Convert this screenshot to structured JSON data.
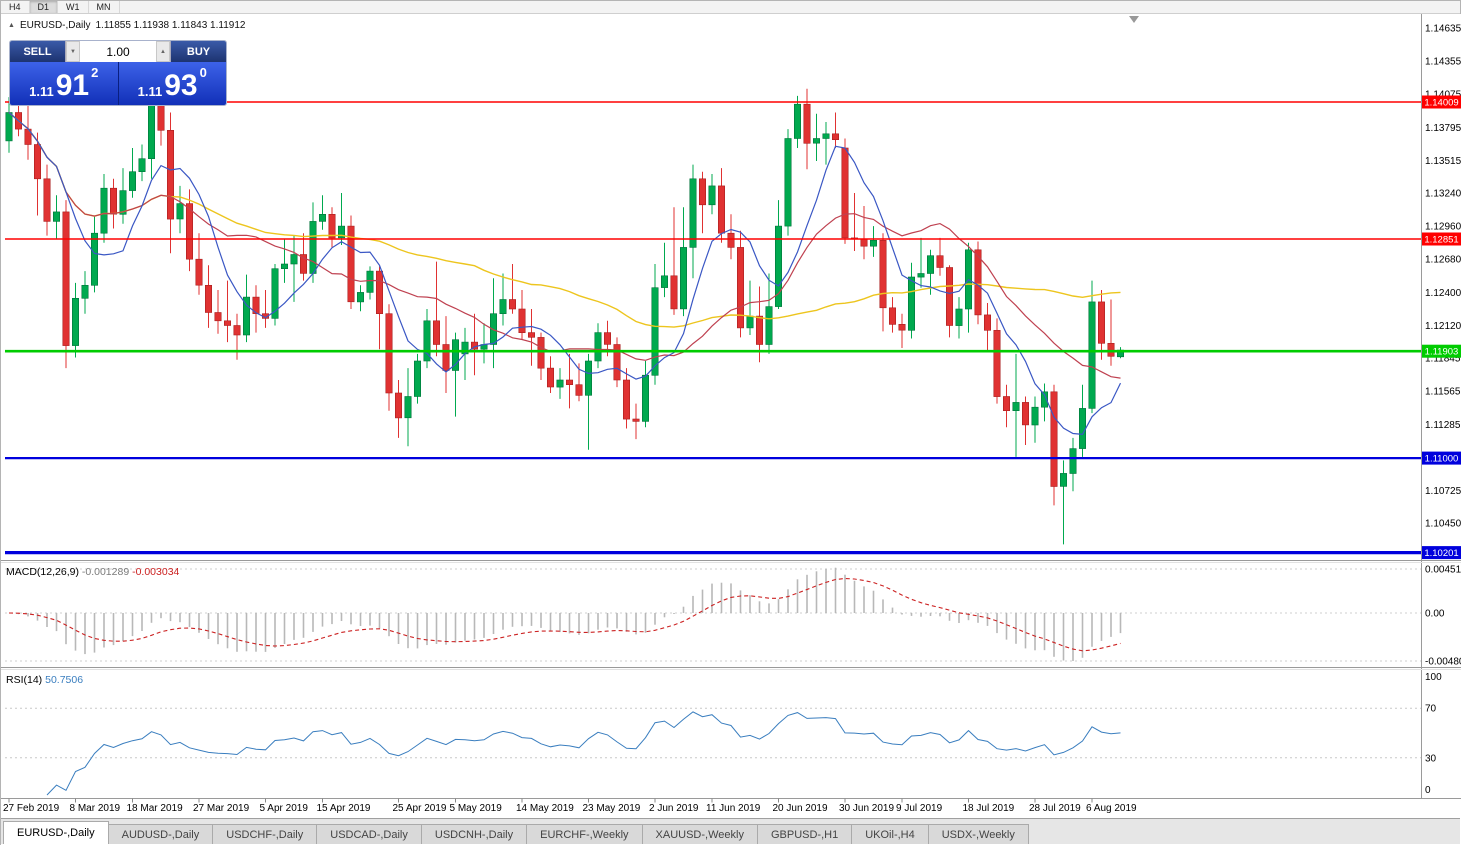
{
  "toolbar": {
    "timeframes": [
      "H4",
      "D1",
      "W1",
      "MN"
    ],
    "active": "D1"
  },
  "header": {
    "collapse_icon": "▲",
    "symbol": "EURUSD-,Daily",
    "ohlc": "1.11855 1.11938 1.11843 1.11912"
  },
  "trade_panel": {
    "sell_label": "SELL",
    "buy_label": "BUY",
    "volume": "1.00",
    "volume_down_icon": "▼",
    "volume_up_icon": "▲",
    "sell_price": {
      "prefix": "1.11",
      "big": "91",
      "sup": "2"
    },
    "buy_price": {
      "prefix": "1.11",
      "big": "93",
      "sup": "0"
    }
  },
  "chart_data": {
    "type": "candlestick",
    "symbol": "EURUSD-",
    "period": "Daily",
    "up_color": "#00a94f",
    "down_color": "#e03232",
    "price_axis_labels": [
      "1.14635",
      "1.14355",
      "1.14075",
      "1.13795",
      "1.13515",
      "1.13240",
      "1.12960",
      "1.12680",
      "1.12400",
      "1.12120",
      "1.11845",
      "1.11565",
      "1.11285",
      "1.11000",
      "1.10725",
      "1.10450"
    ],
    "horizontal_lines": [
      {
        "price": 1.14009,
        "label": "1.14009",
        "color": "#ff0000",
        "width": 1.6
      },
      {
        "price": 1.12851,
        "label": "1.12851",
        "color": "#ff0000",
        "width": 1.6
      },
      {
        "price": 1.11903,
        "label": "1.11903",
        "color": "#00cc00",
        "width": 2.6
      },
      {
        "price": 1.11,
        "label": "1.11000",
        "color": "#0000dd",
        "width": 2.2
      },
      {
        "price": 1.10201,
        "label": "1.10201",
        "color": "#0000dd",
        "width": 3.2
      }
    ],
    "moving_averages": [
      {
        "period": 50,
        "color": "#edc51e",
        "width": 1.4
      },
      {
        "period": 18,
        "color": "#bf4150",
        "width": 1.2
      },
      {
        "period": 7,
        "color": "#3a57c4",
        "width": 1.2
      }
    ],
    "date_labels": [
      "27 Feb 2019",
      "8 Mar 2019",
      "18 Mar 2019",
      "27 Mar 2019",
      "5 Apr 2019",
      "15 Apr 2019",
      "25 Apr 2019",
      "5 May 2019",
      "14 May 2019",
      "23 May 2019",
      "2 Jun 2019",
      "11 Jun 2019",
      "20 Jun 2019",
      "30 Jun 2019",
      "9 Jul 2019",
      "18 Jul 2019",
      "28 Jul 2019",
      "6 Aug 2019"
    ],
    "date_label_indices": [
      0,
      7,
      13,
      20,
      27,
      33,
      41,
      47,
      54,
      61,
      68,
      74,
      81,
      88,
      94,
      101,
      108,
      114
    ],
    "candles": [
      [
        1.1368,
        1.1405,
        1.1358,
        1.1392
      ],
      [
        1.1392,
        1.142,
        1.1372,
        1.1378
      ],
      [
        1.1378,
        1.141,
        1.1352,
        1.1365
      ],
      [
        1.1365,
        1.1375,
        1.1305,
        1.1336
      ],
      [
        1.1336,
        1.1348,
        1.1288,
        1.13
      ],
      [
        1.13,
        1.1322,
        1.1285,
        1.1308
      ],
      [
        1.1308,
        1.1318,
        1.1176,
        1.1195
      ],
      [
        1.1195,
        1.1248,
        1.1185,
        1.1235
      ],
      [
        1.1235,
        1.1258,
        1.1222,
        1.1246
      ],
      [
        1.1246,
        1.1305,
        1.124,
        1.129
      ],
      [
        1.129,
        1.134,
        1.1282,
        1.1328
      ],
      [
        1.1328,
        1.1336,
        1.1294,
        1.1306
      ],
      [
        1.1306,
        1.1345,
        1.1298,
        1.1326
      ],
      [
        1.1326,
        1.1362,
        1.132,
        1.1342
      ],
      [
        1.1342,
        1.1365,
        1.1334,
        1.1353
      ],
      [
        1.1353,
        1.141,
        1.1336,
        1.1398
      ],
      [
        1.1398,
        1.1405,
        1.1364,
        1.1377
      ],
      [
        1.1377,
        1.1392,
        1.1273,
        1.1302
      ],
      [
        1.1302,
        1.133,
        1.129,
        1.1315
      ],
      [
        1.1315,
        1.1327,
        1.1258,
        1.1268
      ],
      [
        1.1268,
        1.129,
        1.1238,
        1.1246
      ],
      [
        1.1246,
        1.1263,
        1.121,
        1.1223
      ],
      [
        1.1223,
        1.1242,
        1.1205,
        1.1216
      ],
      [
        1.1216,
        1.125,
        1.1198,
        1.1212
      ],
      [
        1.1212,
        1.1222,
        1.1183,
        1.1204
      ],
      [
        1.1204,
        1.1255,
        1.1198,
        1.1236
      ],
      [
        1.1236,
        1.1246,
        1.1206,
        1.1222
      ],
      [
        1.1222,
        1.1242,
        1.121,
        1.1218
      ],
      [
        1.1218,
        1.1264,
        1.1212,
        1.126
      ],
      [
        1.126,
        1.1285,
        1.1248,
        1.1264
      ],
      [
        1.1264,
        1.1288,
        1.1232,
        1.1272
      ],
      [
        1.1272,
        1.129,
        1.125,
        1.1256
      ],
      [
        1.1256,
        1.1316,
        1.1248,
        1.13
      ],
      [
        1.13,
        1.1322,
        1.1293,
        1.1306
      ],
      [
        1.1306,
        1.1312,
        1.1278,
        1.1286
      ],
      [
        1.1286,
        1.1324,
        1.128,
        1.1296
      ],
      [
        1.1296,
        1.1305,
        1.1226,
        1.1232
      ],
      [
        1.1232,
        1.1246,
        1.1224,
        1.124
      ],
      [
        1.124,
        1.1262,
        1.1234,
        1.1258
      ],
      [
        1.1258,
        1.1262,
        1.1192,
        1.1222
      ],
      [
        1.1222,
        1.123,
        1.114,
        1.1155
      ],
      [
        1.1155,
        1.1166,
        1.1117,
        1.1134
      ],
      [
        1.1134,
        1.1176,
        1.111,
        1.1152
      ],
      [
        1.1152,
        1.1188,
        1.1146,
        1.1182
      ],
      [
        1.1182,
        1.1226,
        1.1176,
        1.1216
      ],
      [
        1.1216,
        1.1266,
        1.1186,
        1.1196
      ],
      [
        1.1196,
        1.122,
        1.1155,
        1.1174
      ],
      [
        1.1174,
        1.1206,
        1.1135,
        1.12
      ],
      [
        1.1188,
        1.121,
        1.1166,
        1.1198
      ],
      [
        1.1198,
        1.1222,
        1.117,
        1.1192
      ],
      [
        1.1192,
        1.1214,
        1.118,
        1.1196
      ],
      [
        1.1196,
        1.1252,
        1.1176,
        1.1222
      ],
      [
        1.1222,
        1.1256,
        1.1212,
        1.1234
      ],
      [
        1.1234,
        1.1264,
        1.1222,
        1.1226
      ],
      [
        1.1226,
        1.1242,
        1.12,
        1.1206
      ],
      [
        1.1206,
        1.1226,
        1.1178,
        1.1202
      ],
      [
        1.1202,
        1.1206,
        1.1166,
        1.1176
      ],
      [
        1.1176,
        1.1186,
        1.1155,
        1.116
      ],
      [
        1.116,
        1.1176,
        1.115,
        1.1166
      ],
      [
        1.1166,
        1.1188,
        1.1142,
        1.1162
      ],
      [
        1.1162,
        1.118,
        1.1148,
        1.1153
      ],
      [
        1.1153,
        1.1188,
        1.1107,
        1.1182
      ],
      [
        1.1182,
        1.1214,
        1.1176,
        1.1206
      ],
      [
        1.1206,
        1.1216,
        1.1186,
        1.1196
      ],
      [
        1.1196,
        1.1202,
        1.116,
        1.1166
      ],
      [
        1.1166,
        1.1176,
        1.1125,
        1.1133
      ],
      [
        1.1133,
        1.1146,
        1.1116,
        1.1131
      ],
      [
        1.1131,
        1.1182,
        1.1126,
        1.117
      ],
      [
        1.117,
        1.1264,
        1.1162,
        1.1244
      ],
      [
        1.1244,
        1.1282,
        1.1236,
        1.1254
      ],
      [
        1.1254,
        1.1312,
        1.1221,
        1.1226
      ],
      [
        1.1226,
        1.1312,
        1.122,
        1.1278
      ],
      [
        1.1278,
        1.1348,
        1.1252,
        1.1336
      ],
      [
        1.1336,
        1.1342,
        1.129,
        1.1314
      ],
      [
        1.1314,
        1.134,
        1.1306,
        1.133
      ],
      [
        1.133,
        1.1345,
        1.1282,
        1.129
      ],
      [
        1.129,
        1.1306,
        1.1268,
        1.1278
      ],
      [
        1.1278,
        1.1292,
        1.1202,
        1.121
      ],
      [
        1.121,
        1.125,
        1.1204,
        1.122
      ],
      [
        1.122,
        1.1245,
        1.1181,
        1.1196
      ],
      [
        1.1196,
        1.1256,
        1.1188,
        1.1228
      ],
      [
        1.1228,
        1.1318,
        1.1226,
        1.1296
      ],
      [
        1.1296,
        1.1378,
        1.1288,
        1.137
      ],
      [
        1.137,
        1.1406,
        1.1362,
        1.1399
      ],
      [
        1.1399,
        1.1412,
        1.1344,
        1.1366
      ],
      [
        1.1366,
        1.1391,
        1.1351,
        1.137
      ],
      [
        1.137,
        1.1384,
        1.1348,
        1.1374
      ],
      [
        1.1374,
        1.1392,
        1.1362,
        1.1369
      ],
      [
        1.1362,
        1.137,
        1.1281,
        1.1286
      ],
      [
        1.1286,
        1.1324,
        1.1275,
        1.1285
      ],
      [
        1.1285,
        1.1313,
        1.1268,
        1.1279
      ],
      [
        1.1279,
        1.1296,
        1.127,
        1.1284
      ],
      [
        1.1284,
        1.129,
        1.1207,
        1.1227
      ],
      [
        1.1227,
        1.1236,
        1.1206,
        1.1213
      ],
      [
        1.1213,
        1.1222,
        1.1193,
        1.1208
      ],
      [
        1.1208,
        1.1265,
        1.1201,
        1.1253
      ],
      [
        1.1253,
        1.1286,
        1.1244,
        1.1256
      ],
      [
        1.1256,
        1.1276,
        1.1238,
        1.1271
      ],
      [
        1.1271,
        1.1286,
        1.1254,
        1.1261
      ],
      [
        1.1261,
        1.1263,
        1.1202,
        1.1212
      ],
      [
        1.1212,
        1.1236,
        1.1201,
        1.1226
      ],
      [
        1.1226,
        1.1282,
        1.1206,
        1.1276
      ],
      [
        1.1276,
        1.1283,
        1.1213,
        1.1221
      ],
      [
        1.1221,
        1.1231,
        1.119,
        1.1208
      ],
      [
        1.1208,
        1.1218,
        1.1146,
        1.1152
      ],
      [
        1.1152,
        1.1162,
        1.1126,
        1.114
      ],
      [
        1.114,
        1.1188,
        1.1101,
        1.1147
      ],
      [
        1.1147,
        1.1152,
        1.1111,
        1.1128
      ],
      [
        1.1128,
        1.1152,
        1.1113,
        1.1143
      ],
      [
        1.1143,
        1.1163,
        1.1131,
        1.1156
      ],
      [
        1.1156,
        1.1162,
        1.106,
        1.1076
      ],
      [
        1.1076,
        1.1098,
        1.1027,
        1.1087
      ],
      [
        1.1087,
        1.1117,
        1.1072,
        1.1108
      ],
      [
        1.1108,
        1.1162,
        1.1101,
        1.1142
      ],
      [
        1.1142,
        1.125,
        1.1138,
        1.1232
      ],
      [
        1.1232,
        1.1242,
        1.1183,
        1.1197
      ],
      [
        1.1197,
        1.1234,
        1.1178,
        1.1186
      ],
      [
        1.11855,
        1.11938,
        1.11843,
        1.11912
      ]
    ]
  },
  "macd": {
    "name": "MACD(12,26,9)",
    "value": "-0.001289",
    "signal_value": "-0.003034",
    "fast": 12,
    "slow": 26,
    "signal": 9,
    "axis_labels": [
      "0.004517",
      "0.00",
      "-0.004806"
    ],
    "histogram_color": "#b8b8b8",
    "signal_color": "#cc2222"
  },
  "rsi": {
    "name": "RSI(14)",
    "value": "50.7506",
    "period": 14,
    "axis_labels": [
      "100",
      "70",
      "30",
      "0"
    ],
    "levels": [
      70,
      30
    ],
    "line_color": "#3a7ebf"
  },
  "tabs": {
    "items": [
      "EURUSD-,Daily",
      "AUDUSD-,Daily",
      "USDCHF-,Daily",
      "USDCAD-,Daily",
      "USDCNH-,Daily",
      "EURCHF-,Weekly",
      "XAUUSD-,Weekly",
      "GBPUSD-,H1",
      "UKOil-,H4",
      "USDX-,Weekly"
    ],
    "active_index": 0
  }
}
